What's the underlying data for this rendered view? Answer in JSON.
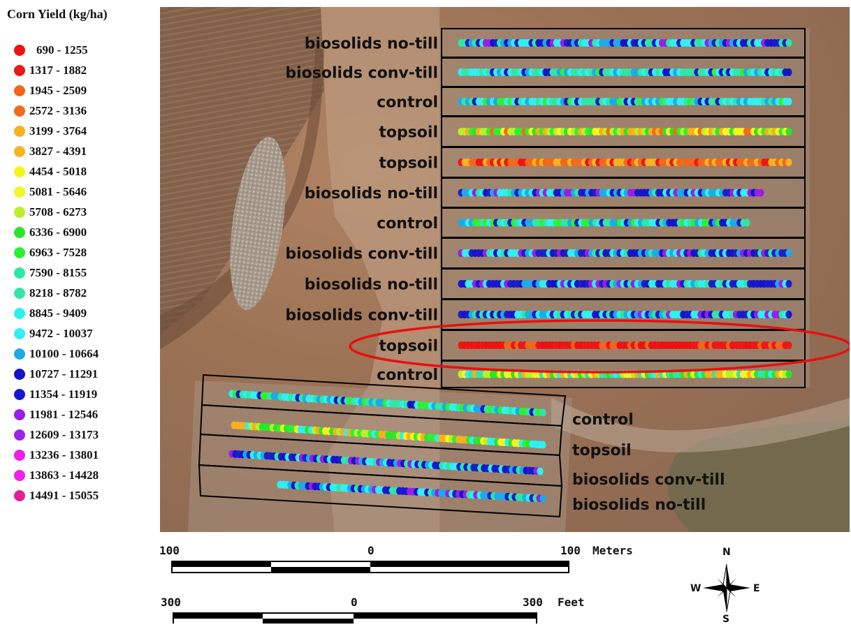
{
  "legend": {
    "title": "Corn Yield (kg/ha)",
    "classes": [
      {
        "label": "690 - 1255",
        "color": "#ee1111"
      },
      {
        "label": "1317 - 1882",
        "color": "#ee1616"
      },
      {
        "label": "1945 - 2509",
        "color": "#f2661a"
      },
      {
        "label": "2572 - 3136",
        "color": "#f26a1e"
      },
      {
        "label": "3199 - 3764",
        "color": "#f7b01e"
      },
      {
        "label": "3827 - 4391",
        "color": "#f7b424"
      },
      {
        "label": "4454 - 5018",
        "color": "#f5f51e"
      },
      {
        "label": "5081 - 5646",
        "color": "#f5f52a"
      },
      {
        "label": "5708 - 6273",
        "color": "#b9f02a"
      },
      {
        "label": "6336 - 6900",
        "color": "#2ae62a"
      },
      {
        "label": "6963 - 7528",
        "color": "#2ef032"
      },
      {
        "label": "7590 - 8155",
        "color": "#2ee6a6"
      },
      {
        "label": "8218 - 8782",
        "color": "#32e6a6"
      },
      {
        "label": "8845 - 9409",
        "color": "#2ef0f0"
      },
      {
        "label": "9472 - 10037",
        "color": "#32f0f0"
      },
      {
        "label": "10100 - 10664",
        "color": "#1eaae6"
      },
      {
        "label": "10727 - 11291",
        "color": "#1414c8"
      },
      {
        "label": "11354 - 11919",
        "color": "#1818d0"
      },
      {
        "label": "11981 - 12546",
        "color": "#9a1ee6"
      },
      {
        "label": "12609 - 13173",
        "color": "#9e22e6"
      },
      {
        "label": "13236 - 13801",
        "color": "#ee1ee6"
      },
      {
        "label": "13863 - 14428",
        "color": "#ee22ea"
      },
      {
        "label": "14491 - 15055",
        "color": "#e61e96"
      }
    ]
  },
  "plots_upper": [
    {
      "label": "biosolids no-till",
      "palette": "blue"
    },
    {
      "label": "biosolids conv-till",
      "palette": "cyan"
    },
    {
      "label": "control",
      "palette": "cyan"
    },
    {
      "label": "topsoil",
      "palette": "warm"
    },
    {
      "label": "topsoil",
      "palette": "orange"
    },
    {
      "label": "biosolids no-till",
      "palette": "blue"
    },
    {
      "label": "control",
      "palette": "cyan"
    },
    {
      "label": "biosolids conv-till",
      "palette": "blue"
    },
    {
      "label": "biosolids no-till",
      "palette": "blue"
    },
    {
      "label": "biosolids conv-till",
      "palette": "blue"
    },
    {
      "label": "topsoil",
      "palette": "red"
    },
    {
      "label": "control",
      "palette": "mixed"
    }
  ],
  "plots_lower": [
    {
      "label": "control",
      "palette": "cyan"
    },
    {
      "label": "topsoil",
      "palette": "greenwarm"
    },
    {
      "label": "biosolids conv-till",
      "palette": "blue"
    },
    {
      "label": "biosolids no-till",
      "palette": "blue"
    }
  ],
  "highlight": {
    "plot": "topsoil",
    "color": "#e81010"
  },
  "scalebar": {
    "meters": {
      "left": "100",
      "center": "0",
      "right": "100",
      "unit": "Meters"
    },
    "feet": {
      "left": "300",
      "center": "0",
      "right": "300",
      "unit": "Feet"
    }
  },
  "north_arrow": {
    "n": "N",
    "s": "S",
    "e": "E",
    "w": "W"
  }
}
